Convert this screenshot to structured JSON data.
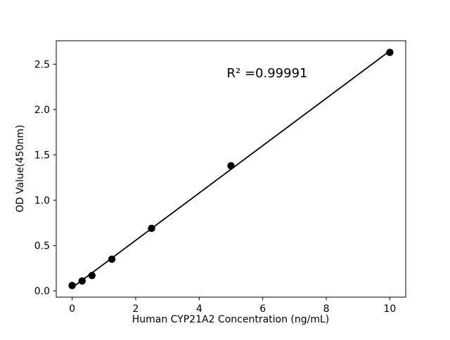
{
  "chart_data": {
    "type": "scatter",
    "x": [
      0,
      0.313,
      0.625,
      1.25,
      2.5,
      5,
      10
    ],
    "y": [
      0.06,
      0.11,
      0.17,
      0.35,
      0.69,
      1.38,
      2.63
    ],
    "trendline": {
      "x": [
        0,
        10
      ],
      "y": [
        0.036,
        2.646
      ]
    },
    "annotation": "R² =0.99991",
    "xlabel": "Human CYP21A2 Concentration (ng/mL)",
    "ylabel": "OD Value(450nm)",
    "xticks": [
      0,
      2,
      4,
      6,
      8,
      10
    ],
    "xtick_labels": [
      "0",
      "2",
      "4",
      "6",
      "8",
      "10"
    ],
    "yticks": [
      0.0,
      0.5,
      1.0,
      1.5,
      2.0,
      2.5
    ],
    "ytick_labels": [
      "0.0",
      "0.5",
      "1.0",
      "1.5",
      "2.0",
      "2.5"
    ],
    "xlim": [
      -0.5,
      10.5
    ],
    "ylim": [
      -0.0685,
      2.7585
    ],
    "grid": false,
    "legend": null,
    "marker_color": "#000000",
    "line_color": "#000000",
    "axis_color": "#000000",
    "background_color": "#ffffff"
  }
}
